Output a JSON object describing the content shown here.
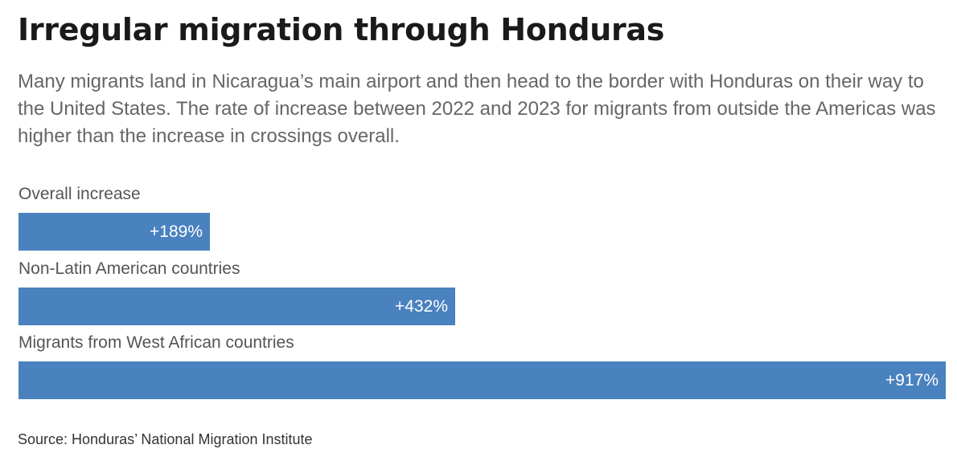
{
  "title": "Irregular migration through Honduras",
  "subtitle": "Many migrants land in Nicaragua’s main airport and then head to the border with Honduras on their way to the United States. The rate of increase between 2022 and 2023 for migrants from outside the Americas was higher than the increase in crossings overall.",
  "source": "Source: Honduras’ National Migration Institute",
  "colors": {
    "bar": "#4a81bf",
    "bar_label": "#ffffff",
    "title": "#1a1a1a",
    "subtitle": "#666666"
  },
  "chart_data": {
    "type": "bar",
    "orientation": "horizontal",
    "categories": [
      "Overall increase",
      "Non-Latin American countries",
      "Migrants from West African countries"
    ],
    "values": [
      189,
      432,
      917
    ],
    "value_labels": [
      "+189%",
      "+432%",
      "+917%"
    ],
    "xlim": [
      0,
      917
    ],
    "grid": false,
    "legend": "none"
  }
}
